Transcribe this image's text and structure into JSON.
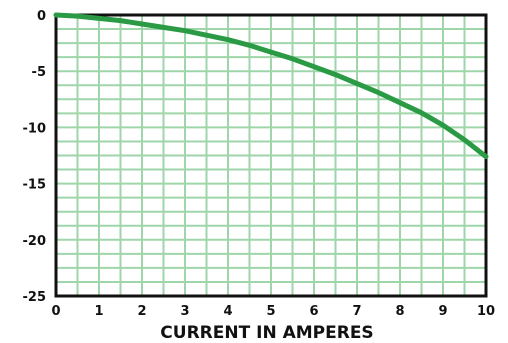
{
  "chart_data": {
    "type": "line",
    "title": "",
    "xlabel": "CURRENT IN AMPERES",
    "ylabel": "",
    "xlim": [
      0,
      10
    ],
    "ylim": [
      -25,
      0
    ],
    "x_ticks": [
      "0",
      "1",
      "2",
      "3",
      "4",
      "5",
      "6",
      "7",
      "8",
      "9",
      "10"
    ],
    "y_ticks": [
      "0",
      "-5",
      "-10",
      "-15",
      "-20",
      "-25"
    ],
    "grid": true,
    "grid_step_x": 0.5,
    "grid_step_y": 1.25,
    "line_color": "#2a9a45",
    "grid_color": "#9fd6a9",
    "frame_color": "#111111",
    "series": [
      {
        "x": [
          0,
          0.5,
          1,
          1.5,
          2,
          2.5,
          3,
          3.5,
          4,
          4.5,
          5,
          5.5,
          6,
          6.5,
          7,
          7.5,
          8,
          8.5,
          9,
          9.5,
          10
        ],
        "values": [
          0,
          -0.1,
          -0.3,
          -0.5,
          -0.8,
          -1.1,
          -1.4,
          -1.8,
          -2.2,
          -2.7,
          -3.3,
          -3.9,
          -4.6,
          -5.3,
          -6.1,
          -6.9,
          -7.8,
          -8.7,
          -9.8,
          -11.1,
          -12.6
        ]
      }
    ]
  }
}
